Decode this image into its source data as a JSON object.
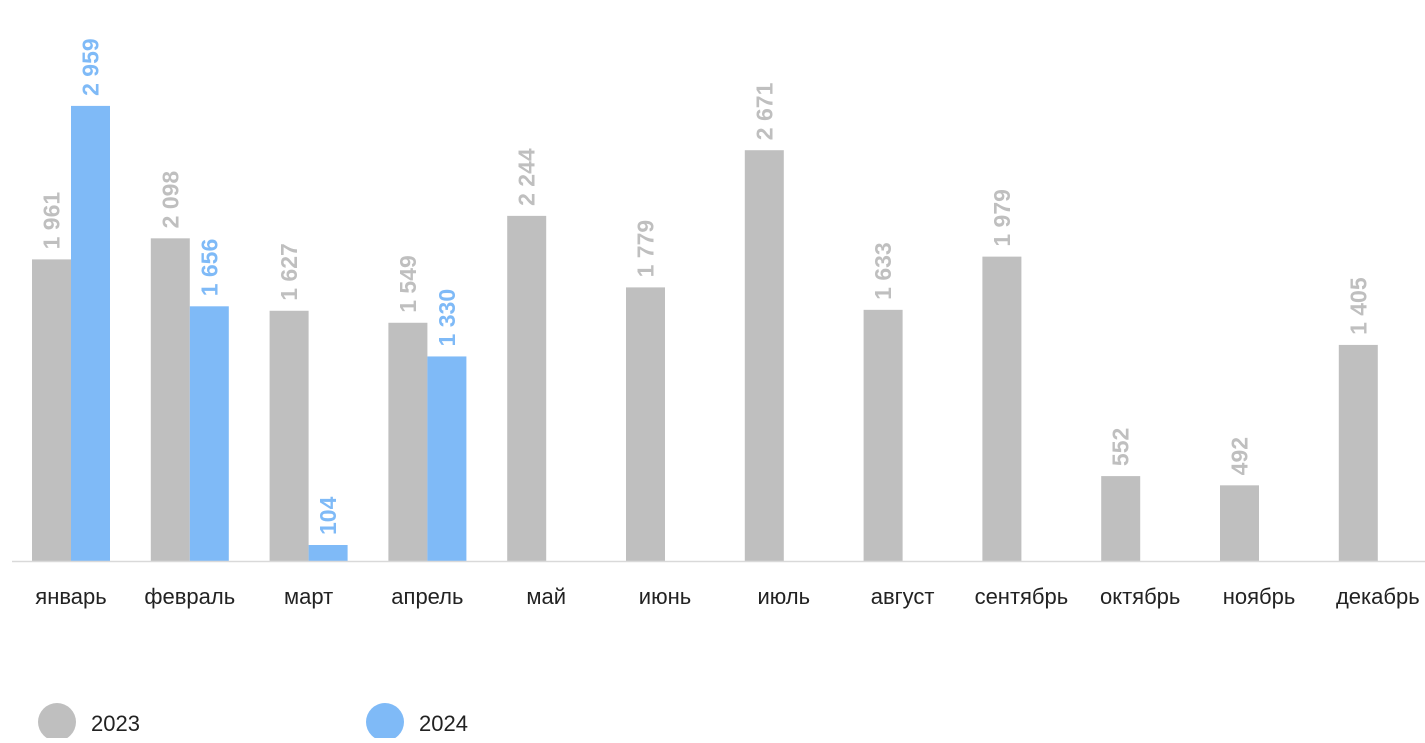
{
  "chart_data": {
    "type": "bar",
    "categories": [
      "январь",
      "февраль",
      "март",
      "апрель",
      "май",
      "июнь",
      "июль",
      "август",
      "сентябрь",
      "октябрь",
      "ноябрь",
      "декабрь"
    ],
    "series": [
      {
        "name": "2023",
        "color": "#bfbfbf",
        "values": [
          1961,
          2098,
          1627,
          1549,
          2244,
          1779,
          2671,
          1633,
          1979,
          552,
          492,
          1405
        ],
        "labels": [
          "1 961",
          "2 098",
          "1 627",
          "1 549",
          "2 244",
          "1 779",
          "2 671",
          "1 633",
          "1 979",
          "552",
          "492",
          "1 405"
        ]
      },
      {
        "name": "2024",
        "color": "#7fbaf7",
        "values": [
          2959,
          1656,
          104,
          1330,
          null,
          null,
          null,
          null,
          null,
          null,
          null,
          null
        ],
        "labels": [
          "2 959",
          "1 656",
          "104",
          "1 330",
          "",
          "",
          "",
          "",
          "",
          "",
          "",
          ""
        ]
      }
    ],
    "ylim": [
      0,
      3000
    ],
    "grid": false,
    "legend": "bottom-left",
    "axis_color": "#d9d9d9",
    "label_color_2023": "#bfbfbf",
    "label_color_2024": "#7fbaf7"
  }
}
